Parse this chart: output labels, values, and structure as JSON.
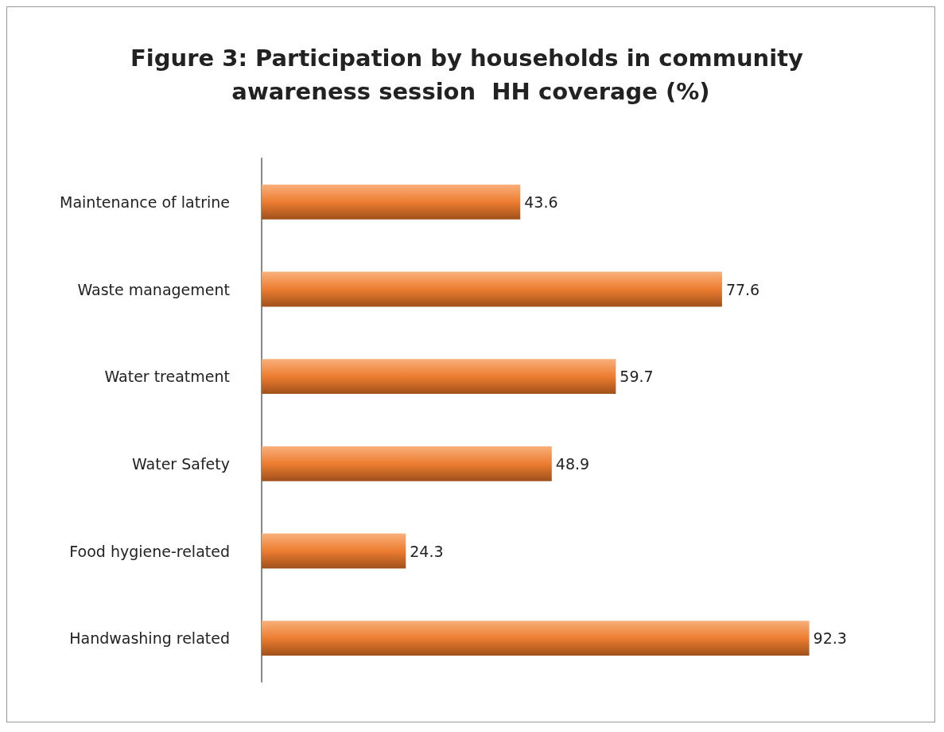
{
  "chart_data": {
    "type": "bar",
    "orientation": "horizontal",
    "title": "Figure 3: Participation by households in community awareness session  HH coverage (%)",
    "categories": [
      "Maintenance of latrine",
      "Waste management",
      "Water treatment",
      "Water Safety",
      "Food hygiene-related",
      "Handwashing related"
    ],
    "values": [
      43.6,
      77.6,
      59.7,
      48.9,
      24.3,
      92.3
    ],
    "color": "#ed7d31",
    "data_labels": true
  }
}
